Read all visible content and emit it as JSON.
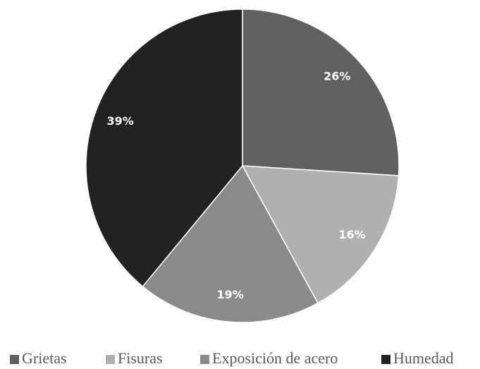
{
  "chart_data": {
    "type": "pie",
    "categories": [
      "Grietas",
      "Fisuras",
      "Exposición de acero",
      "Humedad"
    ],
    "values": [
      26,
      16,
      19,
      39
    ],
    "value_labels": [
      "26%",
      "16%",
      "19%",
      "39%"
    ],
    "colors": [
      "#606060",
      "#b0b0b0",
      "#8a8a8a",
      "#222222"
    ],
    "legend": "bottom"
  }
}
